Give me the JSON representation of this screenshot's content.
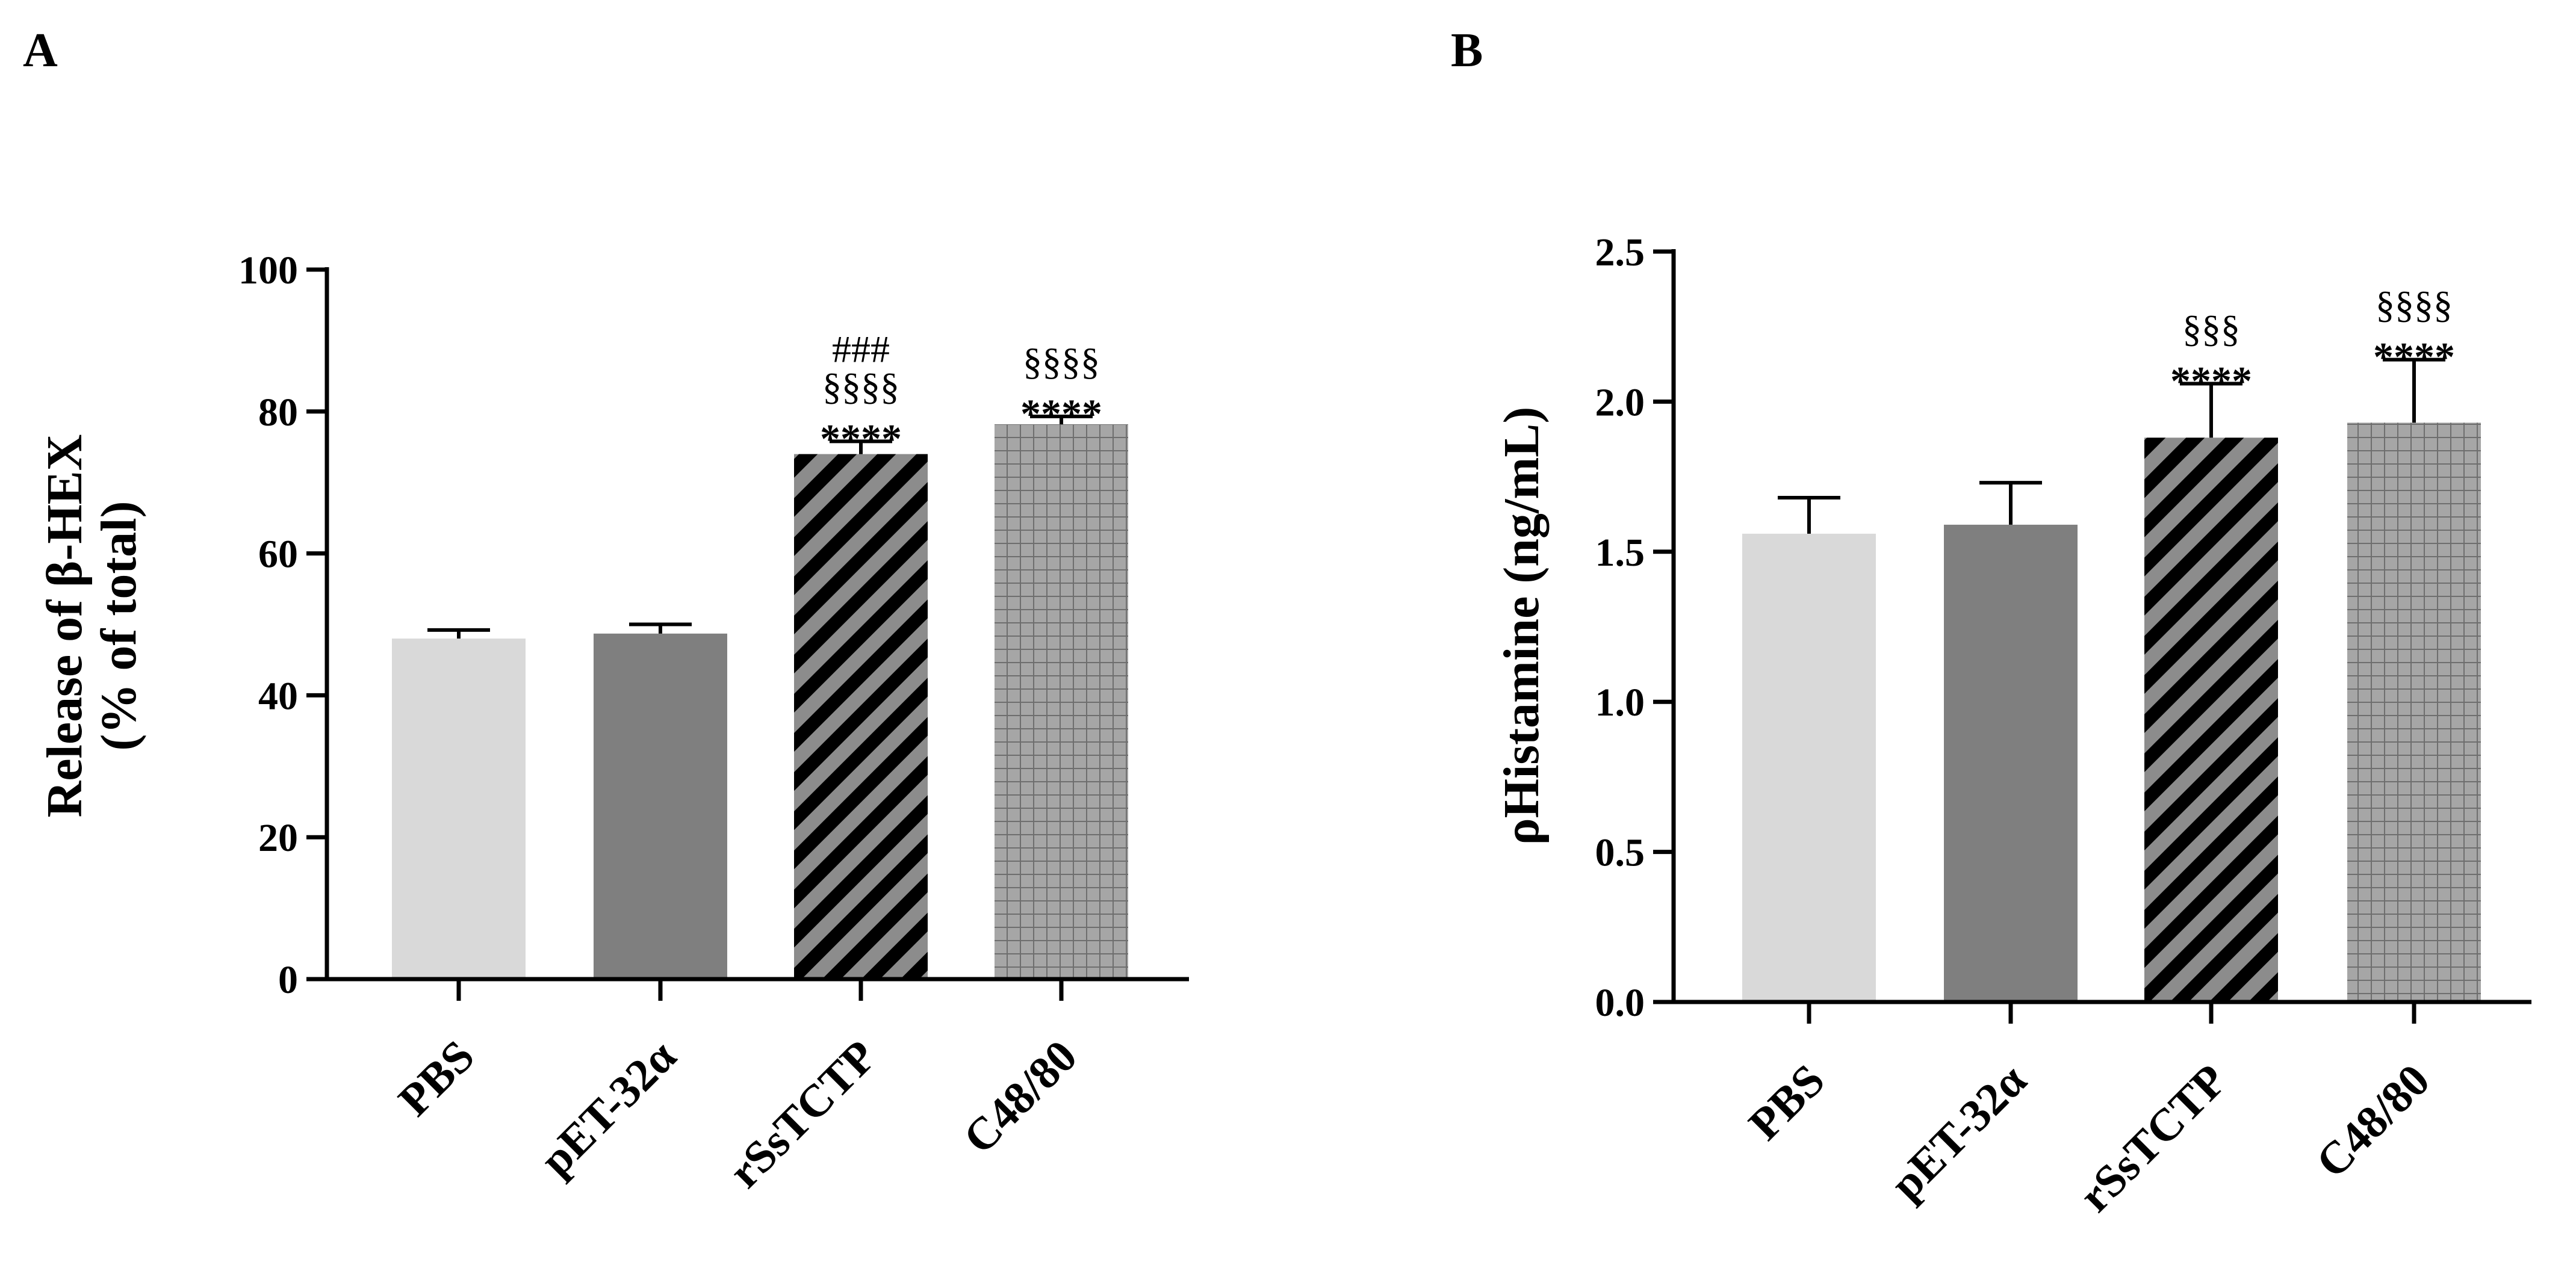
{
  "chart_data": [
    {
      "type": "bar",
      "panel": "A",
      "title": "",
      "categories": [
        "PBS",
        "pET-32α",
        "rSsTCTP",
        "C48/80"
      ],
      "values": [
        48.0,
        48.7,
        74.0,
        78.2
      ],
      "errors": [
        1.2,
        1.3,
        1.8,
        1.1
      ],
      "ylabel_lines": [
        "Release of  β-HEX",
        "(% of total)"
      ],
      "xlabel": "",
      "ylim": [
        0,
        100
      ],
      "yticks": [
        0,
        20,
        40,
        60,
        80,
        100
      ],
      "ytick_labels": [
        "0",
        "20",
        "40",
        "60",
        "80",
        "100"
      ],
      "annotations": [
        {
          "category": "PBS",
          "lines": []
        },
        {
          "category": "pET-32α",
          "lines": []
        },
        {
          "category": "rSsTCTP",
          "lines": [
            "###",
            "§§§§",
            "****"
          ]
        },
        {
          "category": "C48/80",
          "lines": [
            "§§§§",
            "****"
          ]
        }
      ],
      "fills": [
        "light-gray",
        "dark-gray",
        "diagonal-stripes",
        "grid"
      ],
      "colors": {
        "light": "#d9d9d9",
        "dark": "#7f7f7f",
        "stripe_bg": "#8c8c8c",
        "stripe_fg": "#000000",
        "grid_bg": "#a6a6a6",
        "grid_line": "#6e6e6e"
      }
    },
    {
      "type": "bar",
      "panel": "B",
      "title": "",
      "categories": [
        "PBS",
        "pET-32α",
        "rSsTCTP",
        "C48/80"
      ],
      "values": [
        1.56,
        1.59,
        1.88,
        1.93
      ],
      "errors": [
        0.12,
        0.14,
        0.18,
        0.21
      ],
      "ylabel_lines": [
        "ρHistamine (ng/mL)"
      ],
      "xlabel": "",
      "ylim": [
        0,
        2.5
      ],
      "yticks": [
        0,
        0.5,
        1.0,
        1.5,
        2.0,
        2.5
      ],
      "ytick_labels": [
        "0.0",
        "0.5",
        "1.0",
        "1.5",
        "2.0",
        "2.5"
      ],
      "annotations": [
        {
          "category": "PBS",
          "lines": []
        },
        {
          "category": "pET-32α",
          "lines": []
        },
        {
          "category": "rSsTCTP",
          "lines": [
            "§§§",
            "****"
          ]
        },
        {
          "category": "C48/80",
          "lines": [
            "§§§§",
            "****"
          ]
        }
      ],
      "fills": [
        "light-gray",
        "dark-gray",
        "diagonal-stripes",
        "grid"
      ],
      "colors": {
        "light": "#d9d9d9",
        "dark": "#7f7f7f",
        "stripe_bg": "#8c8c8c",
        "stripe_fg": "#000000",
        "grid_bg": "#a6a6a6",
        "grid_line": "#6e6e6e"
      }
    }
  ]
}
